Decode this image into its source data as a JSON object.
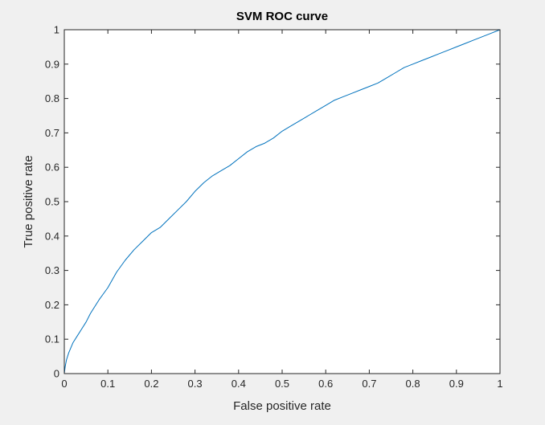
{
  "chart_data": {
    "type": "line",
    "title": "SVM ROC curve",
    "xlabel": "False positive rate",
    "ylabel": "True positive rate",
    "xlim": [
      0,
      1
    ],
    "ylim": [
      0,
      1
    ],
    "xticks": [
      "0",
      "0.1",
      "0.2",
      "0.3",
      "0.4",
      "0.5",
      "0.6",
      "0.7",
      "0.8",
      "0.9",
      "1"
    ],
    "yticks": [
      "0",
      "0.1",
      "0.2",
      "0.3",
      "0.4",
      "0.5",
      "0.6",
      "0.7",
      "0.8",
      "0.9",
      "1"
    ],
    "grid": false,
    "legend": "none",
    "line_color": "#0072bd",
    "series": [
      {
        "x": [
          0,
          0.002,
          0.005,
          0.01,
          0.02,
          0.03,
          0.04,
          0.05,
          0.06,
          0.08,
          0.1,
          0.12,
          0.14,
          0.16,
          0.18,
          0.2,
          0.22,
          0.24,
          0.26,
          0.28,
          0.3,
          0.32,
          0.34,
          0.36,
          0.38,
          0.4,
          0.42,
          0.44,
          0.46,
          0.48,
          0.5,
          0.52,
          0.54,
          0.56,
          0.58,
          0.6,
          0.62,
          0.64,
          0.66,
          0.68,
          0.7,
          0.72,
          0.74,
          0.76,
          0.78,
          0.8,
          0.82,
          0.84,
          0.86,
          0.88,
          0.9,
          0.92,
          0.94,
          0.96,
          0.98,
          1.0
        ],
        "y": [
          0,
          0.02,
          0.04,
          0.06,
          0.09,
          0.11,
          0.13,
          0.15,
          0.175,
          0.215,
          0.25,
          0.295,
          0.33,
          0.36,
          0.385,
          0.41,
          0.425,
          0.45,
          0.475,
          0.5,
          0.53,
          0.555,
          0.575,
          0.59,
          0.605,
          0.625,
          0.645,
          0.66,
          0.67,
          0.685,
          0.705,
          0.72,
          0.735,
          0.75,
          0.765,
          0.78,
          0.795,
          0.805,
          0.815,
          0.825,
          0.835,
          0.845,
          0.86,
          0.875,
          0.89,
          0.9,
          0.91,
          0.92,
          0.93,
          0.94,
          0.95,
          0.96,
          0.97,
          0.98,
          0.99,
          1.0
        ]
      }
    ]
  }
}
